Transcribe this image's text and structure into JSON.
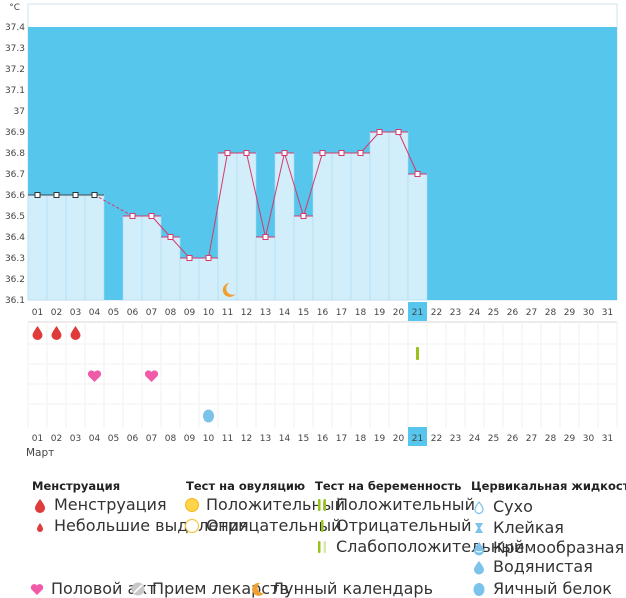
{
  "chart_data": {
    "type": "bar",
    "unit": "°C",
    "month": "Март",
    "ylim": [
      36.1,
      37.4
    ],
    "y_ticks": [
      "36.1",
      "36.2",
      "36.3",
      "36.4",
      "36.5",
      "36.6",
      "36.7",
      "36.8",
      "36.9",
      "37",
      "37.1",
      "37.2",
      "37.3",
      "37.4"
    ],
    "days": [
      "01",
      "02",
      "03",
      "04",
      "05",
      "06",
      "07",
      "08",
      "09",
      "10",
      "11",
      "12",
      "13",
      "14",
      "15",
      "16",
      "17",
      "18",
      "19",
      "20",
      "21",
      "22",
      "23",
      "24",
      "25",
      "26",
      "27",
      "28",
      "29",
      "30",
      "31"
    ],
    "temperatures": [
      36.6,
      36.6,
      36.6,
      36.6,
      null,
      36.5,
      36.5,
      36.4,
      36.3,
      36.3,
      36.8,
      36.8,
      36.4,
      36.8,
      36.5,
      36.8,
      36.8,
      36.8,
      36.9,
      36.9,
      36.7,
      null,
      null,
      null,
      null,
      null,
      null,
      null,
      null,
      null,
      null
    ],
    "highlighted_day": "21",
    "weekend_days": [
      "01",
      "07",
      "08",
      "14",
      "15",
      "21",
      "22",
      "28",
      "29"
    ],
    "moon_day": "11",
    "menstruation_days": [
      "01",
      "02",
      "03"
    ],
    "intercourse_days": [
      "04",
      "07"
    ],
    "pregnancy_test_positive_days": [
      "21"
    ],
    "cervical_fluid_watery_days": [
      "10"
    ],
    "colors": {
      "phase_band": "#56c6ec",
      "bar_fill": "#d2eefb",
      "line": "#d63a6a",
      "highlight": "#56c6ec",
      "weekend_label": "#e05070",
      "menstruation": "#e03b3b",
      "intercourse": "#f05aa8",
      "test_green": "#99c21a",
      "fluid_blue": "#7bc3ea",
      "moon": "#f0a030"
    }
  },
  "legend": {
    "menstruation": {
      "title": "Менструация",
      "items": [
        {
          "icon": "drop-icon-large",
          "label": "Менструация"
        },
        {
          "icon": "drop-icon-small",
          "label": "Небольшие выделения"
        }
      ]
    },
    "ovulation_test": {
      "title": "Тест на овуляцию",
      "items": [
        {
          "icon": "circle-filled-icon",
          "label": "Положительный"
        },
        {
          "icon": "circle-outline-icon",
          "label": "Отрицательный"
        }
      ]
    },
    "pregnancy_test": {
      "title": "Тест на беременность",
      "items": [
        {
          "icon": "two-stripes-icon",
          "label": "Положительный"
        },
        {
          "icon": "one-stripe-icon",
          "label": "Отрицательный"
        },
        {
          "icon": "faint-stripes-icon",
          "label": "Слабоположительный"
        }
      ]
    },
    "cervical_fluid": {
      "title": "Цервикальная жидкость",
      "items": [
        {
          "icon": "dry-icon",
          "label": "Сухо"
        },
        {
          "icon": "sticky-icon",
          "label": "Клейкая"
        },
        {
          "icon": "creamy-icon",
          "label": "Кремообразная"
        },
        {
          "icon": "watery-icon",
          "label": "Водянистая"
        },
        {
          "icon": "eggwhite-icon",
          "label": "Яичный белок"
        }
      ]
    },
    "other": [
      {
        "icon": "heart-icon",
        "label": "Половой акт"
      },
      {
        "icon": "pill-icon",
        "label": "Прием лекарств"
      },
      {
        "icon": "moon-icon",
        "label": "Лунный календарь"
      }
    ]
  }
}
